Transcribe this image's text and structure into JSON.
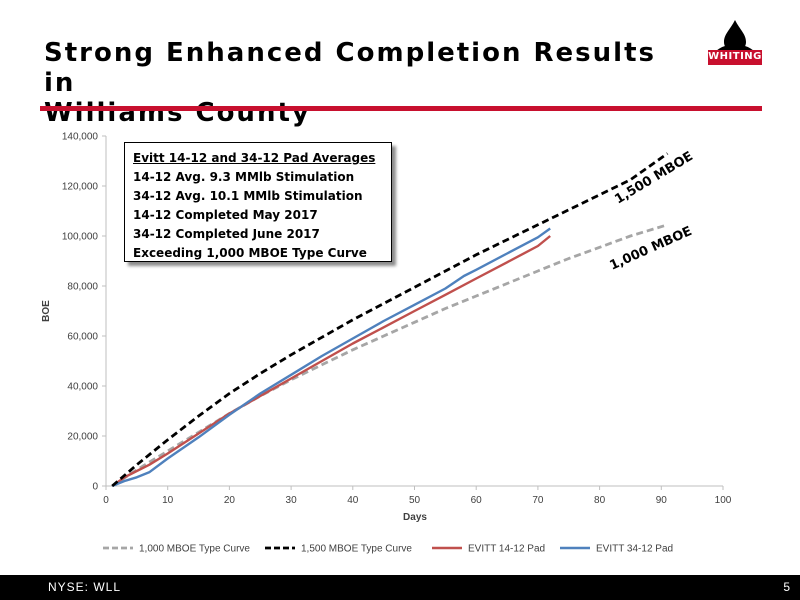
{
  "slide": {
    "title_line1": "Strong Enhanced Completion Results in",
    "title_line2": "Williams County",
    "logo_text": "WHITING",
    "footer_ticker": "NYSE:  WLL",
    "page_number": "5"
  },
  "colors": {
    "accent_red": "#c8102e",
    "series_red": "#c0504d",
    "series_blue": "#4f81bd",
    "type_1000": "#a6a6a6",
    "type_1500": "#000000"
  },
  "annotation": {
    "lines": [
      "Evitt 14-12 and 34-12 Pad Averages",
      "14-12 Avg. 9.3 MMlb Stimulation",
      "34-12 Avg. 10.1 MMlb Stimulation",
      "14-12 Completed May 2017",
      "34-12 Completed June 2017",
      "Exceeding 1,000 MBOE Type Curve"
    ]
  },
  "chart_data": {
    "type": "line",
    "xlabel": "Days",
    "ylabel": "BOE",
    "xlim": [
      0,
      100
    ],
    "ylim": [
      0,
      140000
    ],
    "x_ticks": [
      "0",
      "10",
      "20",
      "30",
      "40",
      "50",
      "60",
      "70",
      "80",
      "90",
      "100"
    ],
    "y_ticks": [
      "0",
      "20,000",
      "40,000",
      "60,000",
      "80,000",
      "100,000",
      "120,000",
      "140,000"
    ],
    "grid": false,
    "legend_position": "bottom",
    "curve_labels": [
      "1,500 MBOE",
      "1,000 MBOE"
    ],
    "series": [
      {
        "name": "1,000 MBOE Type Curve",
        "style": "dashed",
        "color": "#a6a6a6",
        "x": [
          1,
          5,
          10,
          15,
          20,
          25,
          30,
          35,
          40,
          45,
          50,
          55,
          60,
          65,
          70,
          75,
          80,
          85,
          91
        ],
        "y": [
          0,
          6500,
          14000,
          21500,
          29000,
          36000,
          42500,
          48500,
          54500,
          60000,
          65500,
          71000,
          76000,
          81000,
          86000,
          91000,
          95500,
          100000,
          104500
        ]
      },
      {
        "name": "1,500 MBOE Type Curve",
        "style": "dashed",
        "color": "#000000",
        "x": [
          1,
          5,
          10,
          15,
          20,
          25,
          30,
          35,
          40,
          45,
          50,
          55,
          60,
          65,
          70,
          75,
          80,
          85,
          91
        ],
        "y": [
          0,
          8500,
          18500,
          28000,
          37000,
          45000,
          52500,
          59500,
          66500,
          73000,
          79500,
          86000,
          92500,
          98500,
          104500,
          110500,
          116500,
          122500,
          133000
        ]
      },
      {
        "name": "EVITT 14-12 Pad",
        "style": "solid",
        "color": "#c0504d",
        "x": [
          1,
          3,
          5,
          7,
          10,
          15,
          20,
          25,
          30,
          35,
          40,
          45,
          50,
          55,
          60,
          65,
          70,
          72
        ],
        "y": [
          0,
          3500,
          6000,
          8500,
          13000,
          21000,
          29000,
          36000,
          43000,
          50000,
          57000,
          63500,
          70000,
          76500,
          83000,
          89500,
          96000,
          100000
        ]
      },
      {
        "name": "EVITT 34-12 Pad",
        "style": "solid",
        "color": "#4f81bd",
        "x": [
          1,
          3,
          5,
          7,
          10,
          15,
          20,
          25,
          30,
          35,
          40,
          45,
          50,
          55,
          58,
          60,
          65,
          70,
          72
        ],
        "y": [
          0,
          2000,
          3500,
          5500,
          11000,
          19500,
          28500,
          37000,
          44500,
          52000,
          59000,
          66000,
          72500,
          79000,
          84000,
          86500,
          93000,
          99500,
          103000
        ]
      }
    ]
  }
}
